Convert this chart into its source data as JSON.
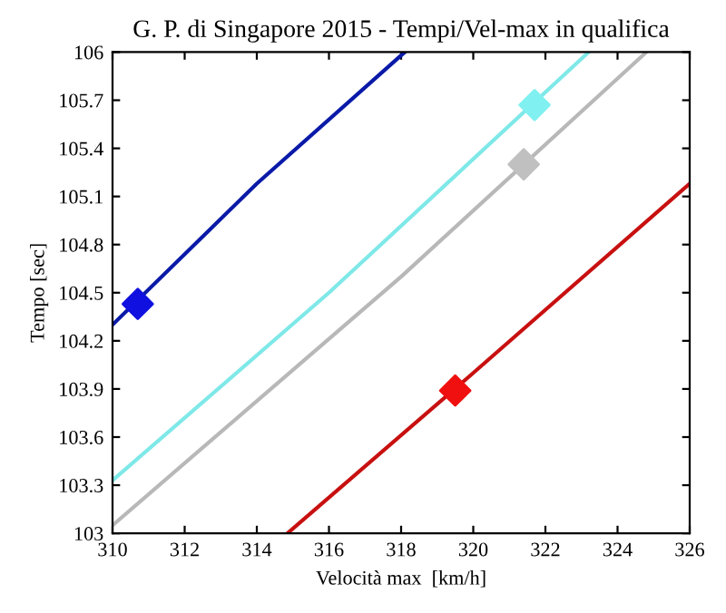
{
  "chart_data": {
    "type": "line",
    "title": "G. P. di Singapore 2015 - Tempi/Vel-max in qualifica",
    "xlabel": "Velocità max  [km/h]",
    "ylabel": "Tempo [sec]",
    "xlim": [
      310,
      326
    ],
    "xticks": [
      310,
      312,
      314,
      316,
      318,
      320,
      322,
      324,
      326
    ],
    "ylim": [
      103,
      106
    ],
    "yticks": [
      103,
      103.3,
      103.6,
      103.9,
      104.2,
      104.5,
      104.8,
      105.1,
      105.4,
      105.7,
      106
    ],
    "grid": false,
    "legend": false,
    "marker": "none",
    "line_style": "solid",
    "series": [
      {
        "color": "#0a1aa8",
        "x": [
          310,
          314,
          318.1
        ],
        "values": [
          104.3,
          105.18,
          106
        ]
      },
      {
        "color": "#7fe8e8",
        "x": [
          310,
          316,
          323.2
        ],
        "values": [
          103.33,
          104.5,
          106
        ]
      },
      {
        "color": "#b8b8b8",
        "x": [
          310,
          318,
          324.8
        ],
        "values": [
          103.05,
          104.6,
          106
        ]
      },
      {
        "color": "#c81010",
        "x": [
          314.85,
          320,
          326
        ],
        "values": [
          103,
          104.0,
          105.18
        ]
      },
      {
        "type": "scatter",
        "marker": "diamond",
        "color": "#1010e0",
        "x": [
          310.7
        ],
        "values": [
          104.43
        ]
      },
      {
        "type": "scatter",
        "marker": "diamond",
        "color": "#80f0f0",
        "x": [
          321.7
        ],
        "values": [
          105.67
        ]
      },
      {
        "type": "scatter",
        "marker": "diamond",
        "color": "#c0c0c0",
        "x": [
          321.4
        ],
        "values": [
          105.3
        ]
      },
      {
        "type": "scatter",
        "marker": "diamond",
        "color": "#f01010",
        "x": [
          319.5
        ],
        "values": [
          103.89
        ]
      }
    ]
  }
}
